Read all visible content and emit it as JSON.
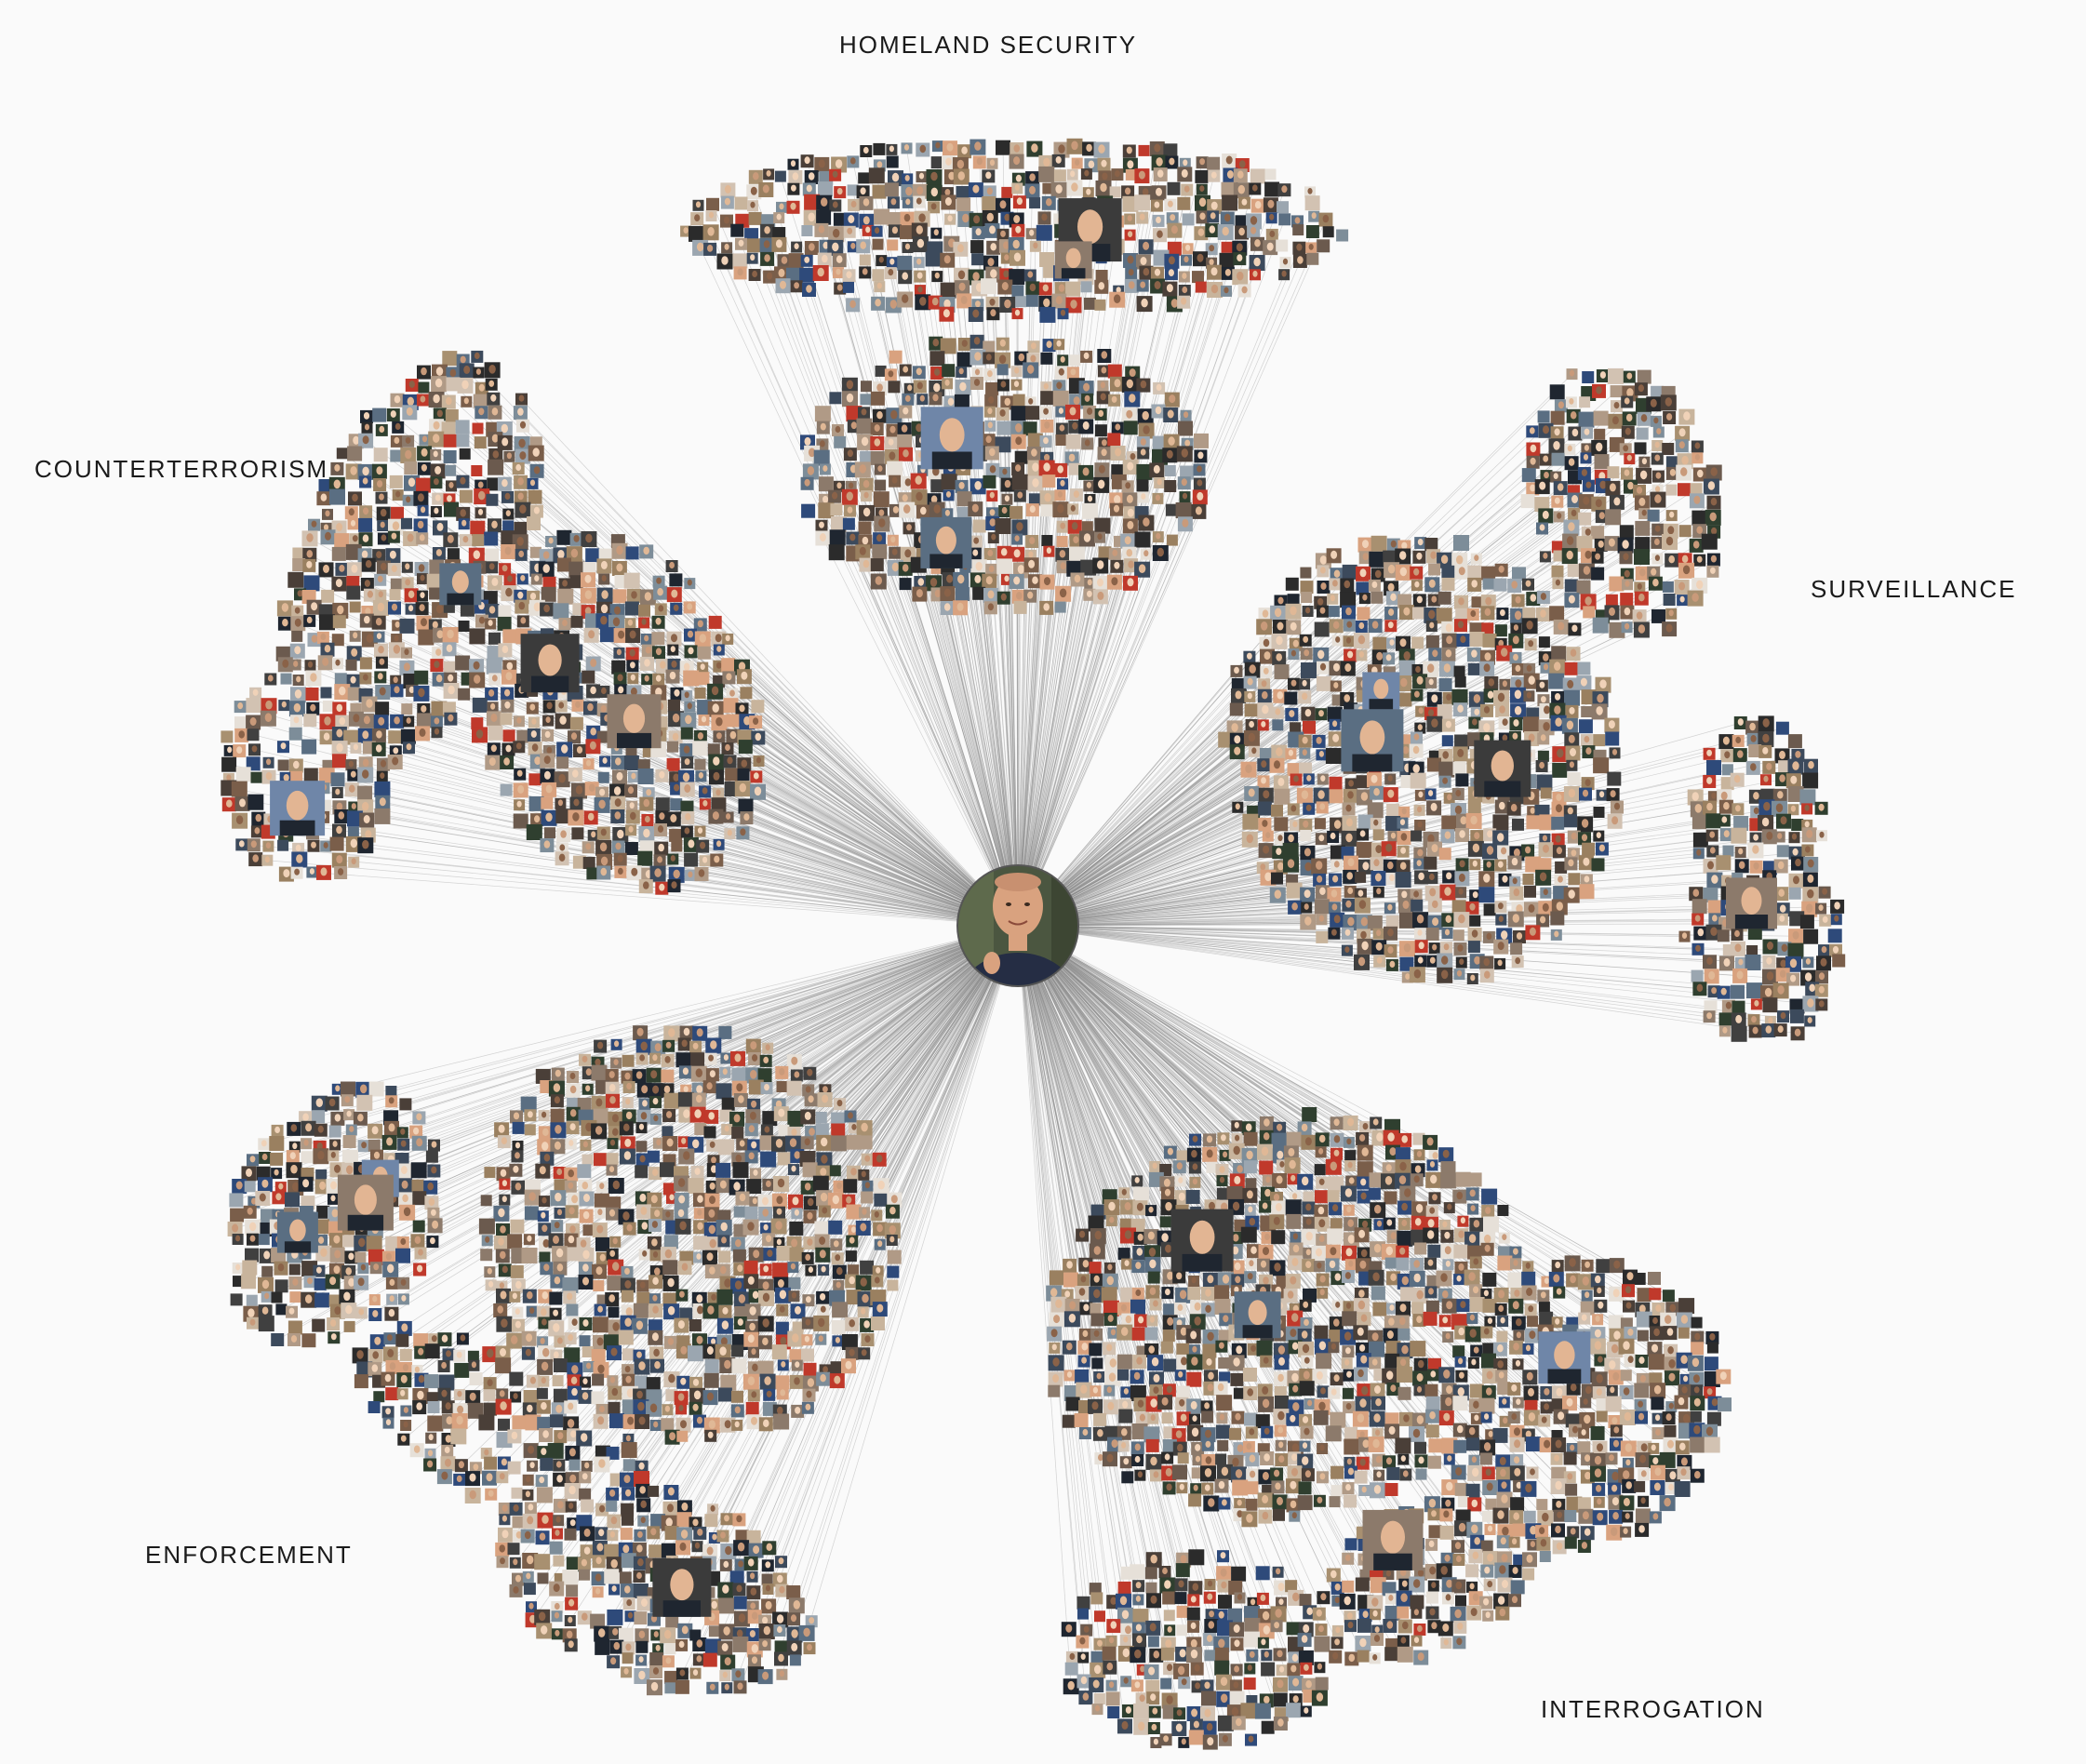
{
  "center_node": {
    "name": "center-person-avatar",
    "colors": {
      "bg": "#4b5640",
      "skin": "#d9a27f",
      "shirt": "#252d44",
      "hair": "#5b4a3a"
    }
  },
  "clusters": [
    {
      "id": "homeland",
      "label": "HOMELAND SECURITY"
    },
    {
      "id": "counter",
      "label": "COUNTERTERRORISM"
    },
    {
      "id": "surv",
      "label": "SURVEILLANCE"
    },
    {
      "id": "enforce",
      "label": "ENFORCEMENT"
    },
    {
      "id": "interrog",
      "label": "INTERROGATION"
    }
  ],
  "colors": {
    "background": "#fafafa",
    "edge": "#8a8a8a",
    "label": "#1a1a1a",
    "thumb_palette": [
      "#2b2b2b",
      "#4a3f38",
      "#6b5a4e",
      "#8c7a6b",
      "#b09a86",
      "#d2c2b2",
      "#3c4a5c",
      "#5a6e82",
      "#7d8d99",
      "#2f3f2f",
      "#9a8060",
      "#c8b49c",
      "#e6e0d8",
      "#1f2630",
      "#a89070",
      "#d9a27f",
      "#7a5e4a",
      "#404040",
      "#9ba6b0",
      "#c0392b",
      "#2e4a7a"
    ]
  }
}
